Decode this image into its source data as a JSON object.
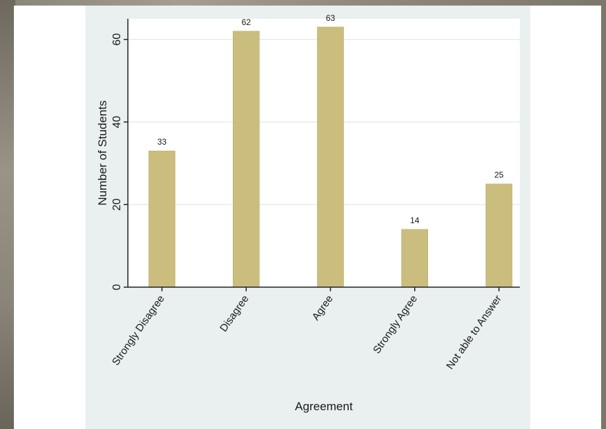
{
  "colors": {
    "bar": "#cbbd7d",
    "bar_stroke": "#b8aa66",
    "plot_bg": "#ffffff",
    "frame_bg": "#e9f0ef",
    "grid": "#e6eceb",
    "axis": "#222222",
    "text": "#1a1a1a"
  },
  "chart_data": {
    "type": "bar",
    "categories": [
      "Strongly Disagree",
      "Disagree",
      "Agree",
      "Strongly Agree",
      "Not able to Answer"
    ],
    "values": [
      33,
      62,
      63,
      14,
      25
    ],
    "data_labels": [
      "33",
      "62",
      "63",
      "14",
      "25"
    ],
    "title": "",
    "xlabel": "Agreement",
    "ylabel": "Number of Students",
    "ylim": [
      0,
      65
    ],
    "yticks": [
      0,
      20,
      40,
      60
    ],
    "ytick_labels": [
      "0",
      "20",
      "40",
      "60"
    ],
    "grid": true
  }
}
